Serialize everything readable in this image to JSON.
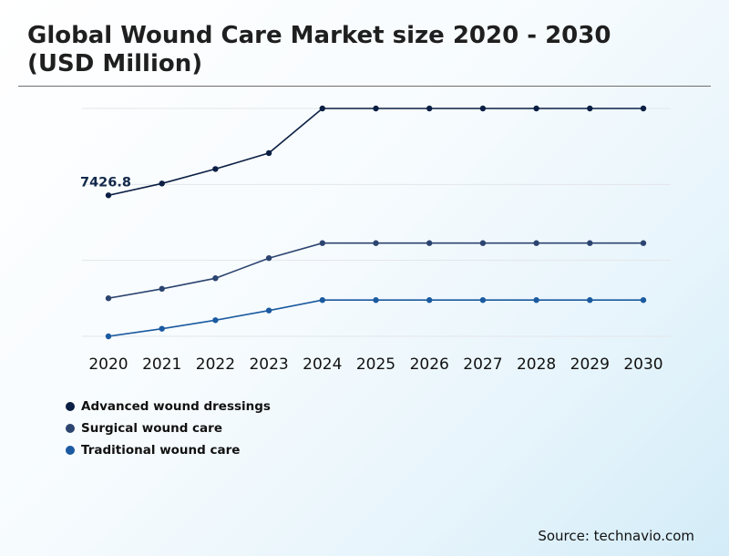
{
  "title": "Global Wound Care Market size 2020 - 2030 (USD Million)",
  "source": "Source: technavio.com",
  "chart_data": {
    "type": "line",
    "title": "Global Wound Care Market size 2020 - 2030 (USD Million)",
    "xlabel": "",
    "ylabel": "",
    "grid": true,
    "legend_position": "bottom-left",
    "categories": [
      "2020",
      "2021",
      "2022",
      "2023",
      "2024",
      "2025",
      "2026",
      "2027",
      "2028",
      "2029",
      "2030"
    ],
    "ylim": [
      0,
      12000
    ],
    "annotations": [
      {
        "series": "Advanced wound dressings",
        "category": "2020",
        "label": "7426.8"
      }
    ],
    "series": [
      {
        "name": "Advanced wound dressings",
        "color": "#0b1f44",
        "values": [
          7426.8,
          8048.9,
          8812.1,
          9651.5,
          12000,
          12000,
          12000,
          12000,
          12000,
          12000,
          12000
        ]
      },
      {
        "name": "Surgical wound care",
        "color": "#2c4470",
        "values": [
          2005,
          2503,
          3060,
          4120,
          4910,
          4910,
          4910,
          4910,
          4910,
          4910,
          4910
        ]
      },
      {
        "name": "Traditional wound care",
        "color": "#1a5aa0",
        "values": [
          0,
          400,
          850,
          1360,
          1910,
          1910,
          1910,
          1910,
          1910,
          1910,
          1910
        ]
      }
    ]
  }
}
